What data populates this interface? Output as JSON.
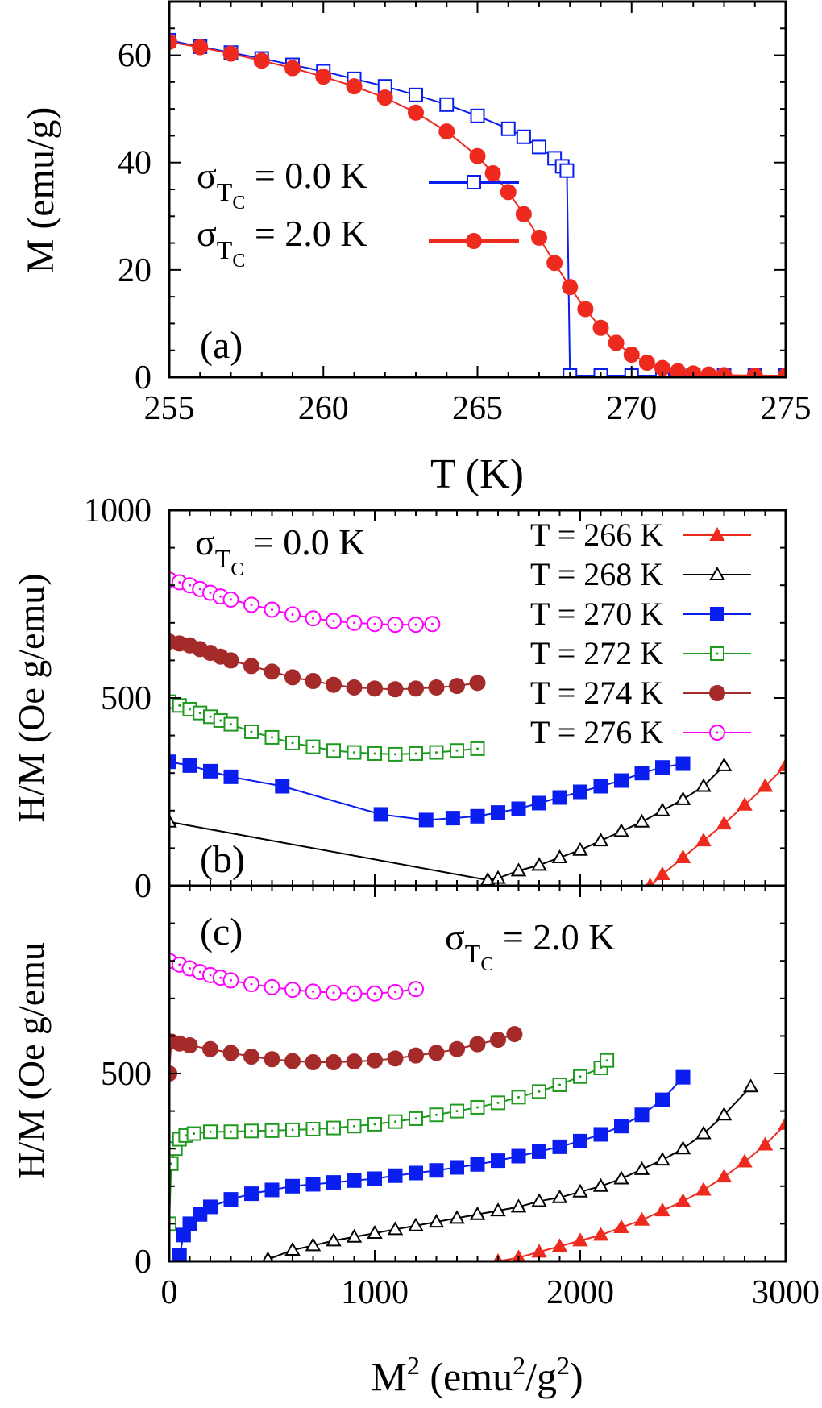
{
  "colors": {
    "red": "#ee2a1e",
    "black": "#000000",
    "blue": "#0a1ef0",
    "green": "#1e9a1e",
    "darkred": "#a52a2a",
    "magenta": "#ff00ff"
  },
  "chart_data": [
    {
      "id": "a",
      "type": "scatter",
      "panel_label": "(a)",
      "xlabel": "T (K)",
      "ylabel": "M (emu/g)",
      "xlim": [
        255,
        275
      ],
      "ylim": [
        0,
        70
      ],
      "xticks": [
        255,
        260,
        265,
        270,
        275
      ],
      "yticks": [
        0,
        20,
        40,
        60
      ],
      "grid": false,
      "legend_position": "middle-left",
      "series": [
        {
          "name": "σ_TC = 0.0 K",
          "legend": {
            "sigma": "σ",
            "sub1": "T",
            "sub2": "C",
            "rest": " = 0.0 K"
          },
          "color": "blue",
          "marker": "square-open",
          "x": [
            255,
            256,
            257,
            258,
            259,
            260,
            261,
            262,
            263,
            264,
            265,
            266,
            266.5,
            267,
            267.5,
            267.75,
            267.9,
            268,
            269,
            270,
            271,
            272,
            273,
            274,
            275
          ],
          "y": [
            62.8,
            61.6,
            60.5,
            59.4,
            58.2,
            57.0,
            55.6,
            54.2,
            52.6,
            50.8,
            48.7,
            46.3,
            44.8,
            42.9,
            40.8,
            39.3,
            38.5,
            0.3,
            0.3,
            0.3,
            0.3,
            0.3,
            0.3,
            0.3,
            0.3
          ]
        },
        {
          "name": "σ_TC = 2.0 K",
          "legend": {
            "sigma": "σ",
            "sub1": "T",
            "sub2": "C",
            "rest": " = 2.0 K"
          },
          "color": "red",
          "marker": "circle-filled",
          "x": [
            255,
            256,
            257,
            258,
            259,
            260,
            261,
            262,
            263,
            264,
            265,
            265.5,
            266,
            266.5,
            267,
            267.5,
            268,
            268.5,
            269,
            269.5,
            270,
            270.5,
            271,
            271.5,
            272,
            272.5,
            273,
            274,
            275
          ],
          "y": [
            62.5,
            61.5,
            60.3,
            59.0,
            57.6,
            56.0,
            54.2,
            52.1,
            49.3,
            45.8,
            41.2,
            38.0,
            34.5,
            30.4,
            26.0,
            21.3,
            16.8,
            12.7,
            9.2,
            6.4,
            4.2,
            2.7,
            1.7,
            1.1,
            0.7,
            0.5,
            0.4,
            0.3,
            0.3
          ]
        }
      ]
    },
    {
      "id": "b",
      "type": "scatter",
      "panel_label": "(b)",
      "annotation": {
        "sigma": "σ",
        "sub1": "T",
        "sub2": "C",
        "rest": " = 0.0 K"
      },
      "ylabel": "H/M (Oe g/emu)",
      "xlim": [
        0,
        3000
      ],
      "ylim": [
        0,
        1000
      ],
      "yticks": [
        0,
        500,
        1000
      ],
      "grid": false,
      "legend_position": "top-right",
      "series": [
        {
          "name": "T = 266 K",
          "color": "red",
          "marker": "triangle-filled",
          "x": [
            2340,
            2400,
            2500,
            2600,
            2700,
            2800,
            2900,
            3000
          ],
          "y": [
            0,
            30,
            75,
            120,
            165,
            215,
            265,
            320
          ]
        },
        {
          "name": "T = 268 K",
          "color": "black",
          "marker": "triangle-open",
          "x": [
            0,
            1550,
            1600,
            1700,
            1800,
            1900,
            2000,
            2100,
            2200,
            2300,
            2400,
            2500,
            2600,
            2700
          ],
          "y": [
            170,
            15,
            20,
            40,
            55,
            75,
            95,
            120,
            145,
            170,
            200,
            230,
            265,
            320
          ]
        },
        {
          "name": "T = 270 K",
          "color": "blue",
          "marker": "square-filled",
          "x": [
            0,
            100,
            200,
            300,
            550,
            1030,
            1250,
            1380,
            1500,
            1600,
            1700,
            1800,
            1900,
            2000,
            2100,
            2200,
            2300,
            2400,
            2500
          ],
          "y": [
            330,
            320,
            305,
            290,
            265,
            190,
            175,
            180,
            185,
            195,
            205,
            220,
            235,
            250,
            265,
            280,
            300,
            315,
            325
          ]
        },
        {
          "name": "T = 272 K",
          "color": "green",
          "marker": "square-open-dotted",
          "x": [
            0,
            50,
            100,
            150,
            200,
            250,
            300,
            400,
            500,
            600,
            700,
            800,
            900,
            1000,
            1100,
            1200,
            1300,
            1400,
            1500
          ],
          "y": [
            490,
            480,
            470,
            460,
            450,
            440,
            430,
            410,
            395,
            380,
            370,
            360,
            355,
            352,
            350,
            352,
            355,
            360,
            365
          ]
        },
        {
          "name": "T = 274 K",
          "color": "darkred",
          "marker": "circle-filled",
          "x": [
            0,
            50,
            100,
            150,
            200,
            250,
            300,
            400,
            500,
            600,
            700,
            800,
            900,
            1000,
            1100,
            1200,
            1300,
            1400,
            1500
          ],
          "y": [
            650,
            645,
            640,
            630,
            620,
            610,
            600,
            585,
            570,
            555,
            545,
            535,
            528,
            525,
            523,
            525,
            528,
            532,
            540
          ]
        },
        {
          "name": "T = 276 K",
          "color": "magenta",
          "marker": "circle-open-dotted",
          "x": [
            0,
            50,
            100,
            150,
            200,
            250,
            300,
            400,
            500,
            600,
            700,
            800,
            900,
            1000,
            1100,
            1200,
            1280
          ],
          "y": [
            815,
            808,
            800,
            790,
            780,
            770,
            762,
            748,
            735,
            722,
            712,
            705,
            700,
            697,
            695,
            695,
            697
          ]
        }
      ]
    },
    {
      "id": "c",
      "type": "scatter",
      "panel_label": "(c)",
      "annotation": {
        "sigma": "σ",
        "sub1": "T",
        "sub2": "C",
        "rest": " = 2.0 K"
      },
      "xlabel": "M² (emu²/g²)",
      "xlabel_parts": {
        "a": "M",
        "asup": "2",
        "b": " (emu",
        "bsup": "2",
        "c": "/g",
        "csup": "2",
        "d": ")"
      },
      "ylabel": "H/M (Oe g/emu",
      "xlim": [
        0,
        3000
      ],
      "ylim": [
        0,
        1000
      ],
      "xticks": [
        0,
        1000,
        2000,
        3000
      ],
      "yticks": [
        0,
        500
      ],
      "grid": false,
      "series": [
        {
          "name": "T = 266 K",
          "color": "red",
          "marker": "triangle-filled",
          "x": [
            1600,
            1700,
            1800,
            1900,
            2000,
            2100,
            2200,
            2300,
            2400,
            2500,
            2600,
            2700,
            2800,
            2900,
            3000
          ],
          "y": [
            0,
            10,
            25,
            40,
            55,
            70,
            90,
            110,
            135,
            160,
            190,
            225,
            265,
            310,
            365
          ]
        },
        {
          "name": "T = 268 K",
          "color": "black",
          "marker": "triangle-open",
          "x": [
            480,
            600,
            700,
            800,
            900,
            1000,
            1100,
            1200,
            1300,
            1400,
            1500,
            1600,
            1700,
            1800,
            1900,
            2000,
            2100,
            2200,
            2300,
            2400,
            2500,
            2600,
            2700,
            2830
          ],
          "y": [
            5,
            30,
            42,
            55,
            65,
            75,
            85,
            95,
            105,
            115,
            125,
            135,
            145,
            160,
            170,
            185,
            200,
            220,
            245,
            270,
            300,
            340,
            390,
            465
          ]
        },
        {
          "name": "T = 270 K",
          "color": "blue",
          "marker": "square-filled",
          "x": [
            50,
            70,
            100,
            150,
            200,
            300,
            400,
            500,
            600,
            700,
            800,
            900,
            1000,
            1100,
            1200,
            1300,
            1400,
            1500,
            1600,
            1700,
            1800,
            1900,
            2000,
            2100,
            2200,
            2300,
            2400,
            2500
          ],
          "y": [
            15,
            70,
            100,
            125,
            145,
            165,
            180,
            190,
            200,
            205,
            210,
            215,
            220,
            228,
            235,
            242,
            250,
            258,
            268,
            280,
            292,
            305,
            320,
            338,
            360,
            390,
            430,
            490
          ]
        },
        {
          "name": "T = 272 K",
          "color": "green",
          "marker": "square-open-dotted",
          "x": [
            0,
            10,
            30,
            50,
            80,
            120,
            200,
            300,
            400,
            500,
            600,
            700,
            800,
            900,
            1000,
            1100,
            1200,
            1300,
            1400,
            1500,
            1600,
            1700,
            1800,
            1900,
            2000,
            2100,
            2130
          ],
          "y": [
            100,
            260,
            300,
            325,
            335,
            340,
            345,
            345,
            347,
            348,
            350,
            352,
            355,
            360,
            365,
            372,
            380,
            390,
            400,
            410,
            422,
            437,
            452,
            470,
            492,
            515,
            535
          ]
        },
        {
          "name": "T = 274 K",
          "color": "darkred",
          "marker": "circle-filled",
          "x": [
            0,
            10,
            50,
            100,
            200,
            300,
            400,
            500,
            600,
            700,
            800,
            900,
            1000,
            1100,
            1200,
            1300,
            1400,
            1500,
            1600,
            1680
          ],
          "y": [
            500,
            585,
            580,
            575,
            565,
            555,
            545,
            538,
            533,
            530,
            530,
            532,
            535,
            540,
            548,
            555,
            565,
            578,
            590,
            605
          ]
        },
        {
          "name": "T = 276 K",
          "color": "magenta",
          "marker": "circle-open-dotted",
          "x": [
            0,
            50,
            100,
            150,
            200,
            250,
            300,
            400,
            500,
            600,
            700,
            800,
            900,
            1000,
            1100,
            1200
          ],
          "y": [
            800,
            790,
            780,
            770,
            762,
            755,
            748,
            738,
            730,
            723,
            718,
            715,
            713,
            713,
            717,
            725
          ]
        }
      ]
    }
  ]
}
